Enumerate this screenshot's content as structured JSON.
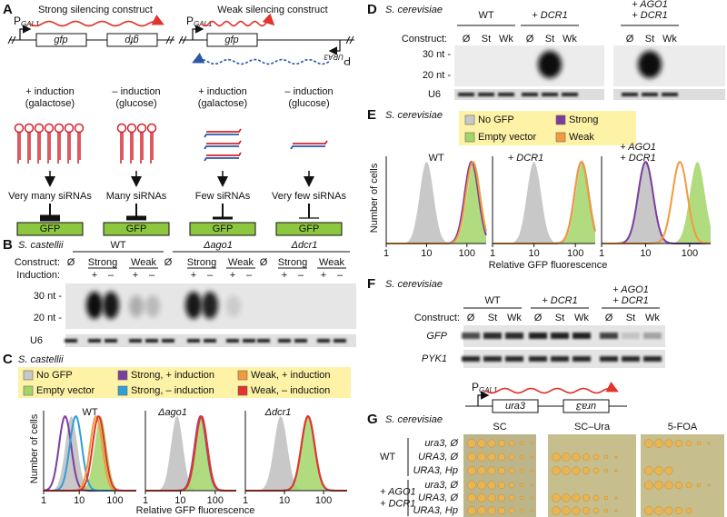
{
  "panels": {
    "A": {
      "label": "A",
      "strong_title": "Strong silencing construct",
      "weak_title": "Weak silencing construct",
      "strong_construct": {
        "promoter": "P",
        "promoter_sub": "GAL1",
        "genes": [
          "gfp",
          "gfp"
        ]
      },
      "weak_construct": {
        "promoter": "P",
        "promoter_sub": "GAL1",
        "genes": [
          "gfp"
        ],
        "reverse_promoter": "P",
        "reverse_promoter_sub": "URA3"
      },
      "columns": [
        {
          "induction": "+ induction",
          "sugar": "(galactose)",
          "outcome": "Very many siRNAs",
          "reporter": "GFP"
        },
        {
          "induction": "– induction",
          "sugar": "(glucose)",
          "outcome": "Many siRNAs",
          "reporter": "GFP"
        },
        {
          "induction": "+ induction",
          "sugar": "(galactose)",
          "outcome": "Few siRNAs",
          "reporter": "GFP"
        },
        {
          "induction": "– induction",
          "sugar": "(glucose)",
          "outcome": "Very few siRNAs",
          "reporter": "GFP"
        }
      ]
    },
    "B": {
      "label": "B",
      "organism": "S. castellii",
      "construct_label": "Construct:",
      "induction_label": "Induction:",
      "strains": [
        {
          "name": "WT",
          "constructs": [
            "Ø",
            "Strong",
            "Weak"
          ],
          "induction": [
            "+",
            "–",
            "+",
            "–"
          ]
        },
        {
          "name": "Δago1",
          "constructs": [
            "Ø",
            "Strong",
            "Weak"
          ],
          "induction": [
            "+",
            "–",
            "+",
            "–"
          ]
        },
        {
          "name": "Δdcr1",
          "constructs": [
            "Ø",
            "Strong",
            "Weak"
          ],
          "induction": [
            "+",
            "–",
            "+",
            "–"
          ]
        }
      ],
      "size_markers": [
        "30 nt -",
        "20 nt -"
      ],
      "loading_control": "U6"
    },
    "C": {
      "label": "C",
      "organism": "S. castellii",
      "legend": [
        {
          "name": "No GFP",
          "color": "#c8c8c8"
        },
        {
          "name": "Empty vector",
          "color": "#a2d568"
        },
        {
          "name": "Strong, + induction",
          "color": "#7a3f9d"
        },
        {
          "name": "Strong, – induction",
          "color": "#2e9fd9"
        },
        {
          "name": "Weak, + induction",
          "color": "#f39a3c"
        },
        {
          "name": "Weak, – induction",
          "color": "#e2332d"
        }
      ],
      "y_label": "Number of cells",
      "x_label": "Relative GFP fluorescence",
      "log_x": true,
      "plots": [
        {
          "title": [
            "WT"
          ],
          "xlim": [
            1,
            400
          ],
          "xticks": [
            1,
            10,
            100
          ],
          "peaks": [
            6,
            40,
            4,
            8,
            30,
            35
          ]
        },
        {
          "title": [
            "Δago1"
          ],
          "xlim": [
            1,
            400
          ],
          "xticks": [
            1,
            10,
            100
          ],
          "peaks": [
            8,
            40,
            38,
            40,
            40,
            40
          ]
        },
        {
          "title": [
            "Δdcr1"
          ],
          "xlim": [
            1,
            400
          ],
          "xticks": [
            1,
            10,
            100
          ],
          "peaks": [
            8,
            42,
            40,
            40,
            40,
            40
          ]
        }
      ]
    },
    "D": {
      "label": "D",
      "organism": "S. cerevisiae",
      "construct_label": "Construct:",
      "groups": [
        {
          "name": [
            "WT"
          ],
          "constructs": [
            "Ø",
            "St",
            "Wk"
          ]
        },
        {
          "name": [
            "+ DCR1"
          ],
          "constructs": [
            "Ø",
            "St",
            "Wk"
          ]
        },
        {
          "name": [
            "+ AGO1",
            "+ DCR1"
          ],
          "constructs": [
            "Ø",
            "St",
            "Wk"
          ]
        }
      ],
      "size_markers": [
        "30 nt -",
        "20 nt -"
      ],
      "loading_control": "U6"
    },
    "E": {
      "label": "E",
      "organism": "S. cerevisiae",
      "legend": [
        {
          "name": "No GFP",
          "color": "#c8c8c8"
        },
        {
          "name": "Empty vector",
          "color": "#a2d568"
        },
        {
          "name": "Strong",
          "color": "#7a3f9d"
        },
        {
          "name": "Weak",
          "color": "#f39a3c"
        }
      ],
      "y_label": "Number of cells",
      "x_label": "Relative GFP fluorescence",
      "log_x": true,
      "plots": [
        {
          "title": [
            "WT"
          ],
          "xlim": [
            1,
            300
          ],
          "xticks": [
            1,
            10,
            100
          ],
          "peaks": [
            10,
            150,
            130,
            140
          ]
        },
        {
          "title": [
            "+ DCR1"
          ],
          "xlim": [
            1,
            300
          ],
          "xticks": [
            1,
            10,
            100
          ],
          "peaks": [
            10,
            150,
            140,
            140
          ]
        },
        {
          "title": [
            "+ AGO1",
            "+ DCR1"
          ],
          "xlim": [
            1,
            300
          ],
          "xticks": [
            1,
            10,
            100
          ],
          "peaks": [
            10,
            150,
            10,
            60
          ]
        }
      ]
    },
    "F": {
      "label": "F",
      "organism": "S. cerevisiae",
      "construct_label": "Construct:",
      "groups": [
        {
          "name": [
            "WT"
          ],
          "constructs": [
            "Ø",
            "St",
            "Wk"
          ]
        },
        {
          "name": [
            "+ DCR1"
          ],
          "constructs": [
            "Ø",
            "St",
            "Wk"
          ]
        },
        {
          "name": [
            "+ AGO1",
            "+ DCR1"
          ],
          "constructs": [
            "Ø",
            "St",
            "Wk"
          ]
        }
      ],
      "rows": [
        "GFP",
        "PYK1"
      ]
    },
    "G": {
      "label": "G",
      "organism": "S. cerevisiae",
      "construct": {
        "promoter": "P",
        "promoter_sub": "GAL1",
        "genes": [
          "ura3",
          "ura3"
        ]
      },
      "media": [
        "SC",
        "SC–Ura",
        "5-FOA"
      ],
      "groups": [
        {
          "name": [
            "WT"
          ],
          "rows": [
            "ura3, Ø",
            "URA3, Ø",
            "URA3, Hp"
          ]
        },
        {
          "name": [
            "+ AGO1",
            "+ DCR1"
          ],
          "rows": [
            "ura3, Ø",
            "URA3, Ø",
            "URA3, Hp"
          ]
        }
      ]
    }
  }
}
